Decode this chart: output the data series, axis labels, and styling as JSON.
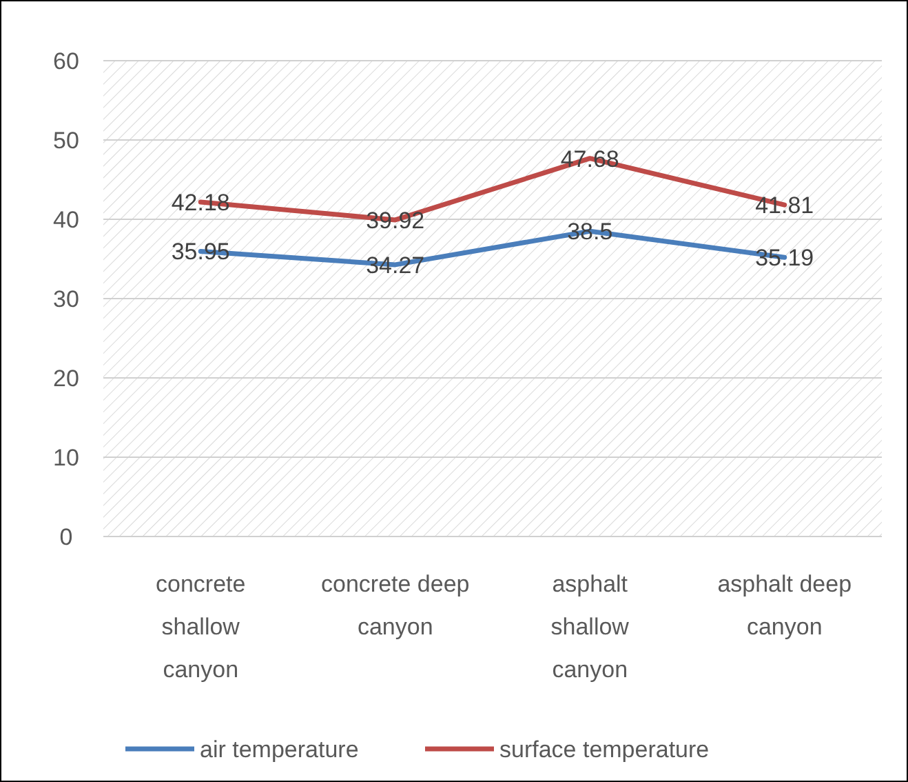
{
  "chart_data": {
    "type": "line",
    "categories": [
      "concrete shallow canyon",
      "concrete deep canyon",
      "asphalt shallow canyon",
      "asphalt deep canyon"
    ],
    "series": [
      {
        "name": "air temperature",
        "color": "#4a7ebb",
        "values": [
          35.95,
          34.27,
          38.5,
          35.19
        ]
      },
      {
        "name": "surface temperature",
        "color": "#be4b48",
        "values": [
          42.18,
          39.92,
          47.68,
          41.81
        ]
      }
    ],
    "ylim": [
      0,
      60
    ],
    "yticks": [
      0,
      10,
      20,
      30,
      40,
      50,
      60
    ],
    "grid": "y",
    "legend": "bottom",
    "data_labels": true,
    "marker": "none",
    "line_style": "solid"
  }
}
